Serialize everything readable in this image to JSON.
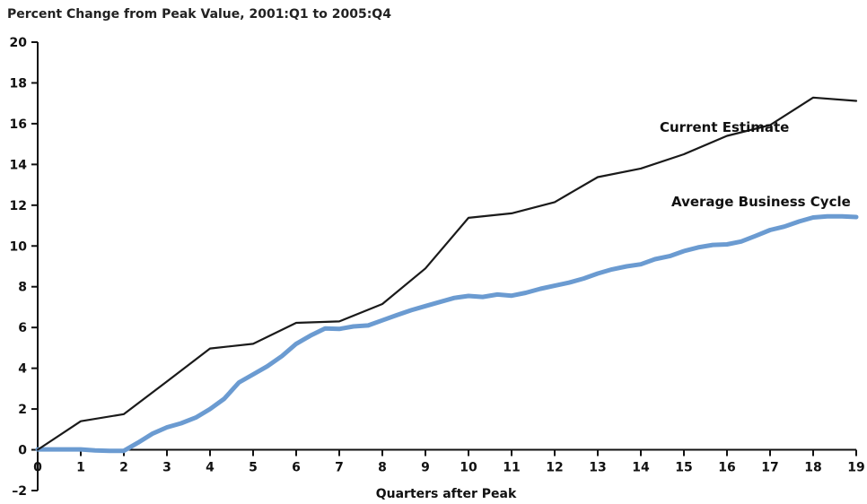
{
  "chart_data": {
    "type": "line",
    "title": "Percent Change from Peak Value, 2001:Q1 to 2005:Q4",
    "xlabel": "Quarters after Peak",
    "ylabel": "",
    "xlim": [
      0,
      19
    ],
    "ylim": [
      -2,
      20
    ],
    "x_ticks": [
      0,
      1,
      2,
      3,
      4,
      5,
      6,
      7,
      8,
      9,
      10,
      11,
      12,
      13,
      14,
      15,
      16,
      17,
      18,
      19
    ],
    "y_ticks": [
      -2,
      0,
      2,
      4,
      6,
      8,
      10,
      12,
      14,
      16,
      18,
      20
    ],
    "y_tick_labels": [
      "–2",
      "0",
      "2",
      "4",
      "6",
      "8",
      "10",
      "12",
      "14",
      "16",
      "18",
      "20"
    ],
    "grid": false,
    "series": [
      {
        "name": "Current Estimate",
        "color": "#1a1a1a",
        "x": [
          0,
          1,
          2,
          3,
          4,
          5,
          6,
          7,
          8,
          9,
          10,
          11,
          12,
          13,
          14,
          15,
          16,
          17,
          18,
          19
        ],
        "y": [
          0,
          1.4,
          1.75,
          3.35,
          4.97,
          5.2,
          6.23,
          6.3,
          7.15,
          8.9,
          11.38,
          11.6,
          12.15,
          13.38,
          13.8,
          14.5,
          15.4,
          15.93,
          17.28,
          17.12
        ]
      },
      {
        "name": "Average Business Cycle",
        "color": "#6b9bd1",
        "x": [
          0,
          0.33,
          0.67,
          1,
          1.33,
          1.67,
          2,
          2.33,
          2.67,
          3,
          3.33,
          3.67,
          4,
          4.33,
          4.67,
          5,
          5.33,
          5.67,
          6,
          6.33,
          6.67,
          7,
          7.33,
          7.67,
          8,
          8.33,
          8.67,
          9,
          9.33,
          9.67,
          10,
          10.33,
          10.67,
          11,
          11.33,
          11.67,
          12,
          12.33,
          12.67,
          13,
          13.33,
          13.67,
          14,
          14.33,
          14.67,
          15,
          15.33,
          15.67,
          16,
          16.33,
          16.67,
          17,
          17.33,
          17.67,
          18,
          18.33,
          18.67,
          19
        ],
        "y": [
          0.02,
          0.02,
          0.02,
          0.02,
          -0.03,
          -0.05,
          -0.05,
          0.35,
          0.8,
          1.1,
          1.3,
          1.58,
          2.0,
          2.5,
          3.3,
          3.7,
          4.1,
          4.6,
          5.2,
          5.6,
          5.95,
          5.93,
          6.05,
          6.1,
          6.35,
          6.6,
          6.85,
          7.05,
          7.25,
          7.45,
          7.55,
          7.5,
          7.62,
          7.56,
          7.7,
          7.9,
          8.05,
          8.2,
          8.4,
          8.65,
          8.85,
          9.0,
          9.1,
          9.35,
          9.5,
          9.75,
          9.93,
          10.05,
          10.08,
          10.22,
          10.5,
          10.78,
          10.95,
          11.2,
          11.4,
          11.45,
          11.45,
          11.42
        ]
      }
    ],
    "annotations": [
      {
        "text": "Current Estimate",
        "series": 0
      },
      {
        "text": "Average Business Cycle",
        "series": 1
      }
    ]
  }
}
